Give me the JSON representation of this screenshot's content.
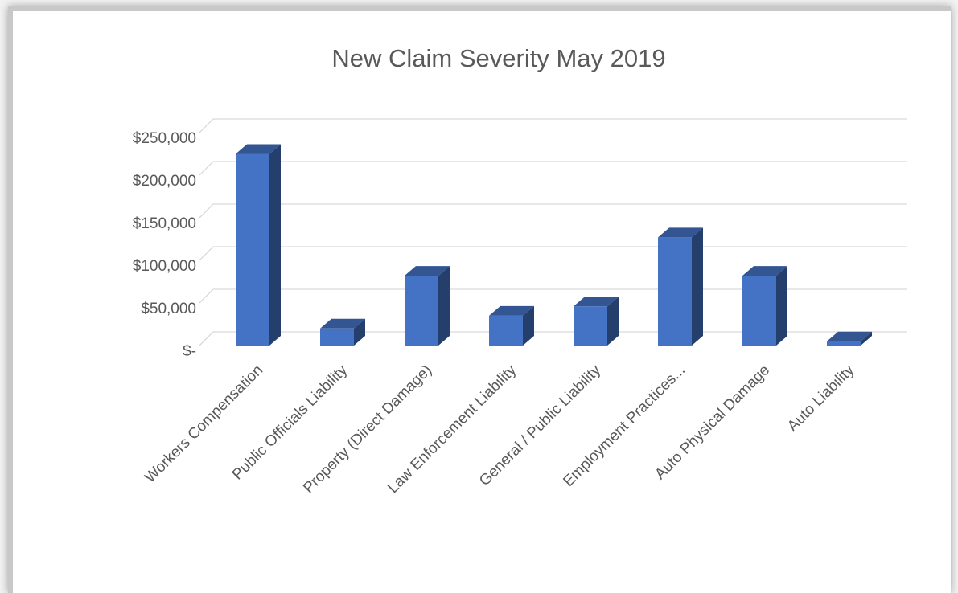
{
  "chart_data": {
    "type": "bar3d",
    "title": "New Claim Severity May 2019",
    "categories": [
      "Workers Compensation",
      "Public Officials Liability",
      "Property (Direct Damage)",
      "Law Enforcement Liability",
      "General / Public Liability",
      "Employment Practices...",
      "Auto Physical Damage",
      "Auto Liability"
    ],
    "values": [
      225000,
      20000,
      82000,
      35000,
      46000,
      127000,
      82000,
      5000
    ],
    "color": "#4472c4",
    "ylim": [
      0,
      250000
    ],
    "yticks": [
      {
        "value": 0,
        "label": "$-"
      },
      {
        "value": 50000,
        "label": "$50,000"
      },
      {
        "value": 100000,
        "label": "$100,000"
      },
      {
        "value": 150000,
        "label": "$150,000"
      },
      {
        "value": 200000,
        "label": "$200,000"
      },
      {
        "value": 250000,
        "label": "$250,000"
      }
    ],
    "grid": true
  }
}
